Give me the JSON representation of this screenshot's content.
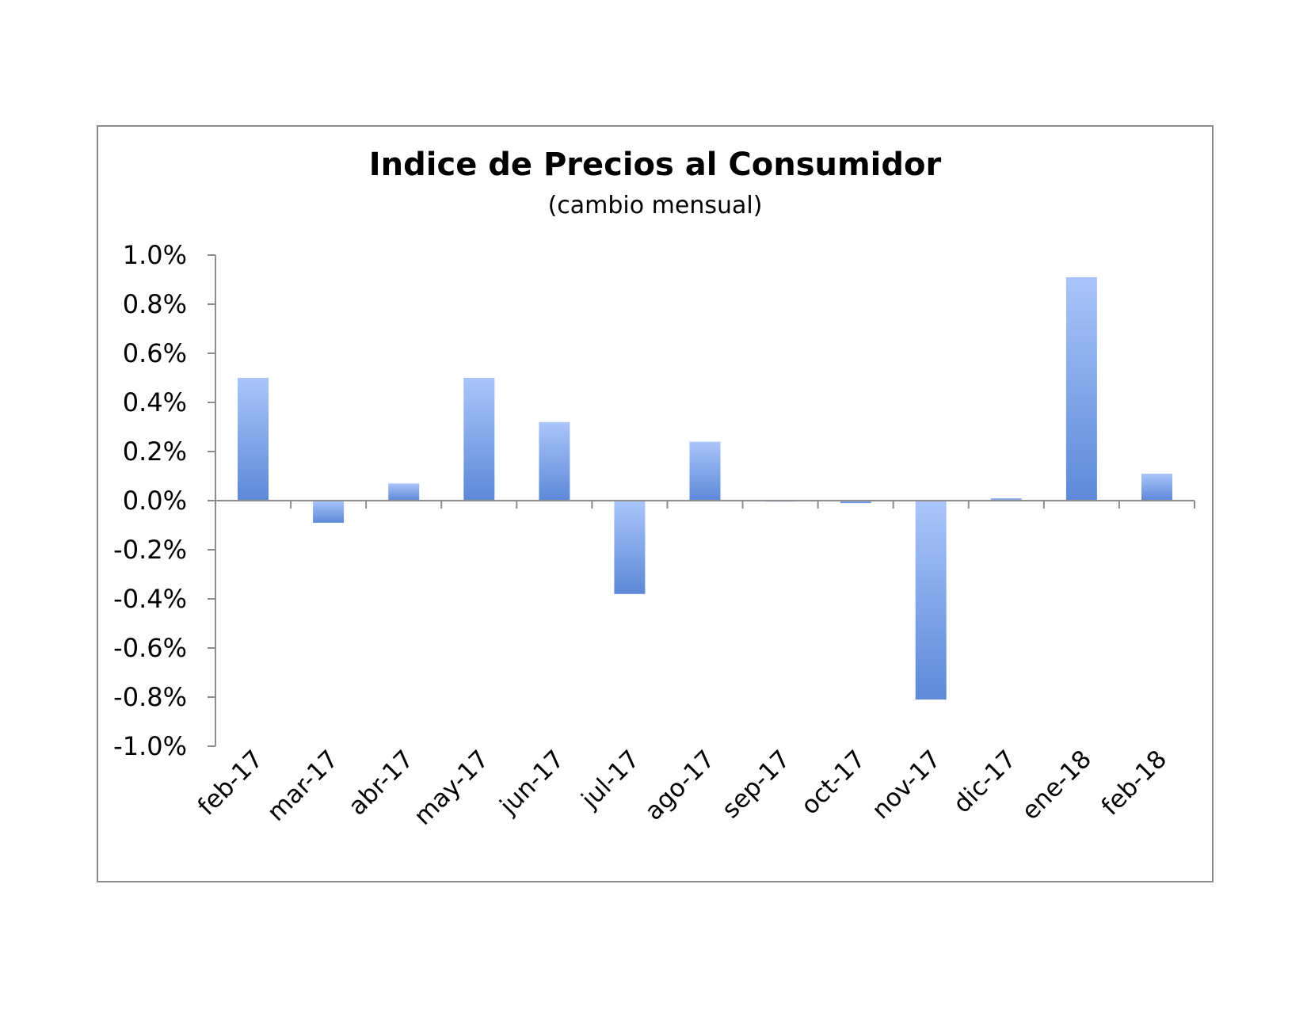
{
  "chart_data": {
    "type": "bar",
    "title": "Indice de Precios al Consumidor",
    "subtitle": "(cambio mensual)",
    "xlabel": "",
    "ylabel": "",
    "categories": [
      "feb-17",
      "mar-17",
      "abr-17",
      "may-17",
      "jun-17",
      "jul-17",
      "ago-17",
      "sep-17",
      "oct-17",
      "nov-17",
      "dic-17",
      "ene-18",
      "feb-18"
    ],
    "values": [
      0.5,
      -0.09,
      0.07,
      0.5,
      0.32,
      -0.38,
      0.24,
      0.0,
      -0.01,
      -0.81,
      0.01,
      0.91,
      0.11
    ],
    "value_unit": "%",
    "ylim": [
      -1.0,
      1.0
    ],
    "y_ticks": [
      "1.0%",
      "0.8%",
      "0.6%",
      "0.4%",
      "0.2%",
      "0.0%",
      "-0.2%",
      "-0.4%",
      "-0.6%",
      "-0.8%",
      "-1.0%"
    ],
    "y_tick_values": [
      1.0,
      0.8,
      0.6,
      0.4,
      0.2,
      0.0,
      -0.2,
      -0.4,
      -0.6,
      -0.8,
      -1.0
    ],
    "grid": false,
    "legend": "none",
    "colors": {
      "bar_light": "#a9c4f8",
      "bar_dark": "#5b87d6",
      "axis": "#8c8c8c"
    }
  }
}
